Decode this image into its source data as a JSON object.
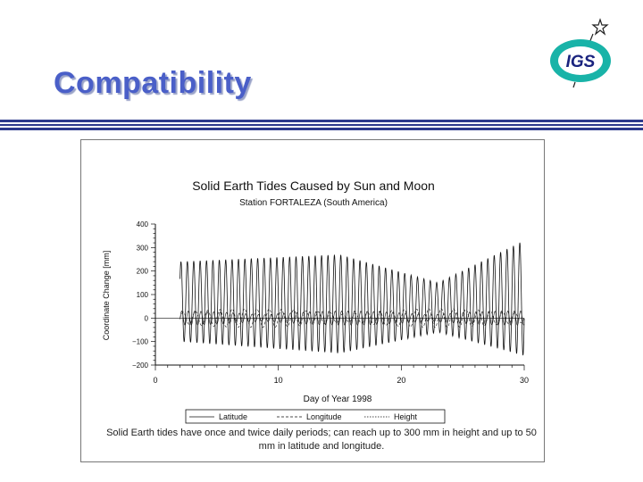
{
  "slide": {
    "title": "Compatibility",
    "logo_text": "IGS",
    "caption": "Solid Earth tides have once and twice daily periods; can reach up to 300 mm in height and up to 50 mm in latitude and longitude."
  },
  "colors": {
    "title": "#4a5fc8",
    "rules": "#2d3a8c",
    "logo_ring": "#19b3a8",
    "logo_text": "#1a237e"
  },
  "chart_data": {
    "type": "line",
    "title": "Solid Earth Tides Caused by Sun and Moon",
    "subtitle": "Station FORTALEZA (South America)",
    "xlabel": "Day of Year 1998",
    "ylabel": "Coordinate Change [mm]",
    "xlim": [
      0,
      30
    ],
    "ylim": [
      -200,
      400
    ],
    "x_ticks": [
      0,
      10,
      20,
      30
    ],
    "y_ticks": [
      -200,
      -100,
      0,
      100,
      200,
      300,
      400
    ],
    "grid": false,
    "legend_position": "bottom",
    "data_x_range": [
      2,
      30
    ],
    "series": [
      {
        "name": "Latitude",
        "style": "solid",
        "amplitude_mm": 30,
        "period_days": 0.52,
        "envelope_peaks_days": [
          2,
          15,
          29
        ]
      },
      {
        "name": "Longitude",
        "style": "dashed",
        "amplitude_mm": 40,
        "period_days": 1.0,
        "envelope_peaks_days": [
          8,
          23
        ]
      },
      {
        "name": "Height",
        "style": "dotted",
        "upper_envelope_mm": {
          "day2": 240,
          "day15": 270,
          "day23": 150,
          "day30": 330
        },
        "lower_envelope_mm": {
          "day2": -100,
          "day15": -150,
          "day23": -60,
          "day30": -160
        },
        "period_days": 0.52
      }
    ]
  }
}
